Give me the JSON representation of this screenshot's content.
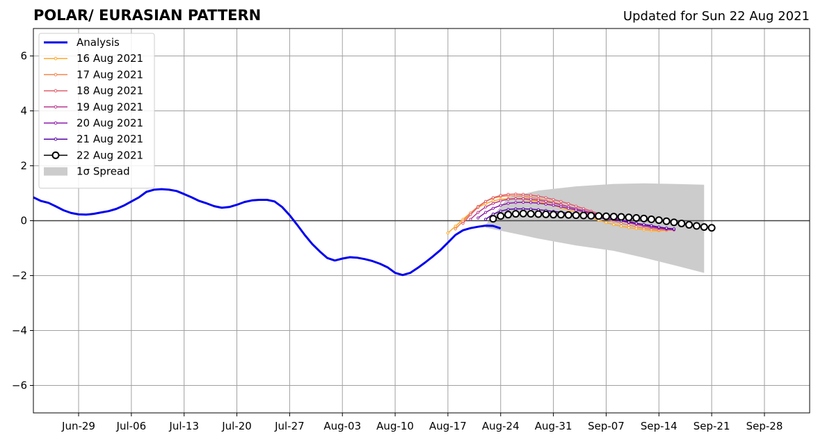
{
  "chart_data": {
    "type": "line",
    "title": "POLAR/ EURASIAN  PATTERN",
    "subtitle": "Updated for Sun 22 Aug 2021",
    "xlabel": "",
    "ylabel": "",
    "x_range": [
      "2021-06-23",
      "2021-10-04"
    ],
    "ylim": [
      -7,
      7
    ],
    "x_ticks": [
      {
        "date": "2021-06-29",
        "label": "Jun-29"
      },
      {
        "date": "2021-07-06",
        "label": "Jul-06"
      },
      {
        "date": "2021-07-13",
        "label": "Jul-13"
      },
      {
        "date": "2021-07-20",
        "label": "Jul-20"
      },
      {
        "date": "2021-07-27",
        "label": "Jul-27"
      },
      {
        "date": "2021-08-03",
        "label": "Aug-03"
      },
      {
        "date": "2021-08-10",
        "label": "Aug-10"
      },
      {
        "date": "2021-08-17",
        "label": "Aug-17"
      },
      {
        "date": "2021-08-24",
        "label": "Aug-24"
      },
      {
        "date": "2021-08-31",
        "label": "Aug-31"
      },
      {
        "date": "2021-09-07",
        "label": "Sep-07"
      },
      {
        "date": "2021-09-14",
        "label": "Sep-14"
      },
      {
        "date": "2021-09-21",
        "label": "Sep-21"
      },
      {
        "date": "2021-09-28",
        "label": "Sep-28"
      }
    ],
    "y_ticks": [
      {
        "value": -6,
        "label": "−6"
      },
      {
        "value": -4,
        "label": "−4"
      },
      {
        "value": -2,
        "label": "−2"
      },
      {
        "value": 0,
        "label": "0"
      },
      {
        "value": 2,
        "label": "2"
      },
      {
        "value": 4,
        "label": "4"
      },
      {
        "value": 6,
        "label": "6"
      }
    ],
    "grid": true,
    "legend_position": "top-left",
    "spread": {
      "name": "1σ Spread",
      "color": "#cccccc",
      "points": [
        {
          "date": "2021-08-22",
          "upper": -0.15,
          "lower": -0.25
        },
        {
          "date": "2021-08-25",
          "upper": 0.85,
          "lower": -0.42
        },
        {
          "date": "2021-08-29",
          "upper": 1.1,
          "lower": -0.65
        },
        {
          "date": "2021-09-03",
          "upper": 1.25,
          "lower": -0.9
        },
        {
          "date": "2021-09-08",
          "upper": 1.34,
          "lower": -1.1
        },
        {
          "date": "2021-09-12",
          "upper": 1.36,
          "lower": -1.35
        },
        {
          "date": "2021-09-16",
          "upper": 1.34,
          "lower": -1.62
        },
        {
          "date": "2021-09-20",
          "upper": 1.31,
          "lower": -1.9
        }
      ]
    },
    "series": [
      {
        "name": "Analysis",
        "color": "#0000ee",
        "style": "thick",
        "start": "2021-06-23",
        "values": [
          0.85,
          0.72,
          0.65,
          0.52,
          0.38,
          0.28,
          0.23,
          0.22,
          0.25,
          0.3,
          0.35,
          0.43,
          0.55,
          0.7,
          0.85,
          1.05,
          1.13,
          1.15,
          1.13,
          1.08,
          0.97,
          0.85,
          0.72,
          0.63,
          0.53,
          0.47,
          0.5,
          0.58,
          0.68,
          0.74,
          0.76,
          0.76,
          0.7,
          0.5,
          0.2,
          -0.15,
          -0.52,
          -0.85,
          -1.12,
          -1.36,
          -1.45,
          -1.38,
          -1.33,
          -1.35,
          -1.4,
          -1.47,
          -1.57,
          -1.7,
          -1.9,
          -1.98,
          -1.9,
          -1.72,
          -1.52,
          -1.3,
          -1.07,
          -0.8,
          -0.52,
          -0.35,
          -0.27,
          -0.22,
          -0.18,
          -0.19,
          -0.28
        ]
      },
      {
        "name": "16 Aug 2021",
        "color": "#ffa928",
        "start": "2021-08-17",
        "values": [
          -0.45,
          -0.2,
          0.05,
          0.28,
          0.48,
          0.62,
          0.72,
          0.78,
          0.8,
          0.8,
          0.78,
          0.74,
          0.69,
          0.63,
          0.56,
          0.48,
          0.4,
          0.31,
          0.22,
          0.12,
          0.02,
          -0.07,
          -0.14,
          -0.2,
          -0.25,
          -0.29,
          -0.33,
          -0.36,
          -0.37,
          -0.35
        ]
      },
      {
        "name": "17 Aug 2021",
        "color": "#f4844c",
        "start": "2021-08-18",
        "values": [
          -0.3,
          -0.02,
          0.28,
          0.52,
          0.7,
          0.82,
          0.88,
          0.91,
          0.91,
          0.89,
          0.85,
          0.8,
          0.74,
          0.67,
          0.6,
          0.51,
          0.42,
          0.33,
          0.24,
          0.15,
          0.06,
          -0.02,
          -0.09,
          -0.16,
          -0.22,
          -0.27,
          -0.31,
          -0.34,
          -0.35,
          -0.34
        ]
      },
      {
        "name": "18 Aug 2021",
        "color": "#de5d6b",
        "start": "2021-08-19",
        "values": [
          -0.1,
          0.22,
          0.5,
          0.7,
          0.84,
          0.92,
          0.96,
          0.97,
          0.96,
          0.93,
          0.89,
          0.84,
          0.77,
          0.7,
          0.62,
          0.53,
          0.44,
          0.35,
          0.26,
          0.17,
          0.08,
          0.0,
          -0.08,
          -0.14,
          -0.2,
          -0.25,
          -0.29,
          -0.32,
          -0.33
        ]
      },
      {
        "name": "19 Aug 2021",
        "color": "#b8398e",
        "start": "2021-08-20",
        "values": [
          0.05,
          0.3,
          0.5,
          0.63,
          0.72,
          0.78,
          0.8,
          0.8,
          0.78,
          0.75,
          0.7,
          0.64,
          0.58,
          0.51,
          0.44,
          0.37,
          0.3,
          0.22,
          0.15,
          0.07,
          0.0,
          -0.07,
          -0.13,
          -0.19,
          -0.24,
          -0.28,
          -0.31,
          -0.33
        ]
      },
      {
        "name": "20 Aug 2021",
        "color": "#8c1aa8",
        "start": "2021-08-21",
        "values": [
          0.1,
          0.3,
          0.45,
          0.56,
          0.63,
          0.66,
          0.67,
          0.66,
          0.64,
          0.6,
          0.56,
          0.51,
          0.45,
          0.39,
          0.33,
          0.27,
          0.21,
          0.15,
          0.09,
          0.03,
          -0.03,
          -0.09,
          -0.15,
          -0.2,
          -0.25,
          -0.29,
          -0.32
        ]
      },
      {
        "name": "21 Aug 2021",
        "color": "#5402a3",
        "start": "2021-08-22",
        "values": [
          0.05,
          0.24,
          0.35,
          0.41,
          0.43,
          0.43,
          0.42,
          0.4,
          0.37,
          0.34,
          0.31,
          0.27,
          0.23,
          0.19,
          0.15,
          0.11,
          0.07,
          0.03,
          -0.01,
          -0.05,
          -0.1,
          -0.14,
          -0.18,
          -0.23,
          -0.27,
          -0.3
        ]
      },
      {
        "name": "22 Aug 2021",
        "color": "#000000",
        "style": "circles",
        "start": "2021-08-23",
        "values": [
          0.07,
          0.17,
          0.22,
          0.25,
          0.26,
          0.25,
          0.24,
          0.23,
          0.22,
          0.22,
          0.21,
          0.2,
          0.19,
          0.18,
          0.17,
          0.16,
          0.15,
          0.14,
          0.12,
          0.1,
          0.08,
          0.05,
          0.02,
          -0.02,
          -0.06,
          -0.1,
          -0.15,
          -0.19,
          -0.23,
          -0.26
        ]
      }
    ]
  }
}
